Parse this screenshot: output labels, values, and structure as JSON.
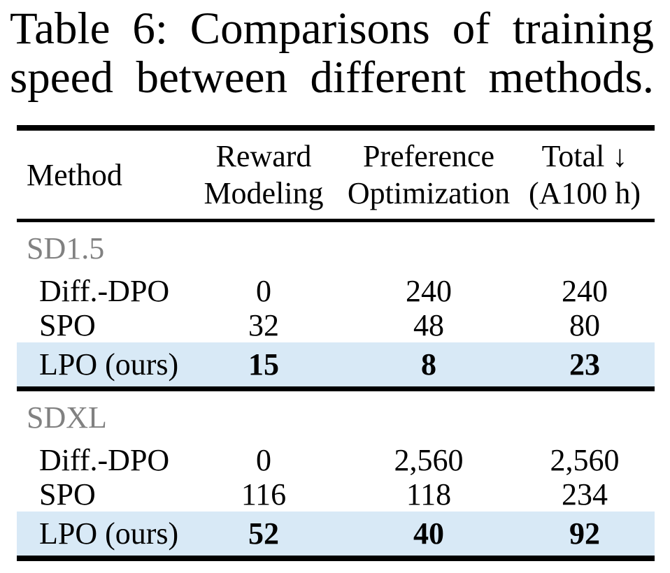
{
  "title": {
    "line1": "Table 6: Comparisons of training",
    "line2": "speed between different methods."
  },
  "colors": {
    "background": "#ffffff",
    "text": "#000000",
    "rule": "#000000",
    "section_label": "#818181",
    "highlight": "#d8e9f6"
  },
  "table": {
    "headers": [
      {
        "lines": [
          "Method"
        ]
      },
      {
        "lines": [
          "Reward",
          "Modeling"
        ]
      },
      {
        "lines": [
          "Preference",
          "Optimization"
        ]
      },
      {
        "lines": [
          "Total ↓",
          "(A100 h)"
        ]
      }
    ],
    "sections": [
      {
        "label": "SD1.5",
        "rows": [
          {
            "method": "Diff.-DPO",
            "values": [
              "0",
              "240",
              "240"
            ],
            "highlight": false
          },
          {
            "method": "SPO",
            "values": [
              "32",
              "48",
              "80"
            ],
            "highlight": false
          },
          {
            "method": "LPO (ours)",
            "values": [
              "15",
              "8",
              "23"
            ],
            "highlight": true
          }
        ]
      },
      {
        "label": "SDXL",
        "rows": [
          {
            "method": "Diff.-DPO",
            "values": [
              "0",
              "2,560",
              "2,560"
            ],
            "highlight": false
          },
          {
            "method": "SPO",
            "values": [
              "116",
              "118",
              "234"
            ],
            "highlight": false
          },
          {
            "method": "LPO (ours)",
            "values": [
              "52",
              "40",
              "92"
            ],
            "highlight": true
          }
        ]
      }
    ]
  }
}
